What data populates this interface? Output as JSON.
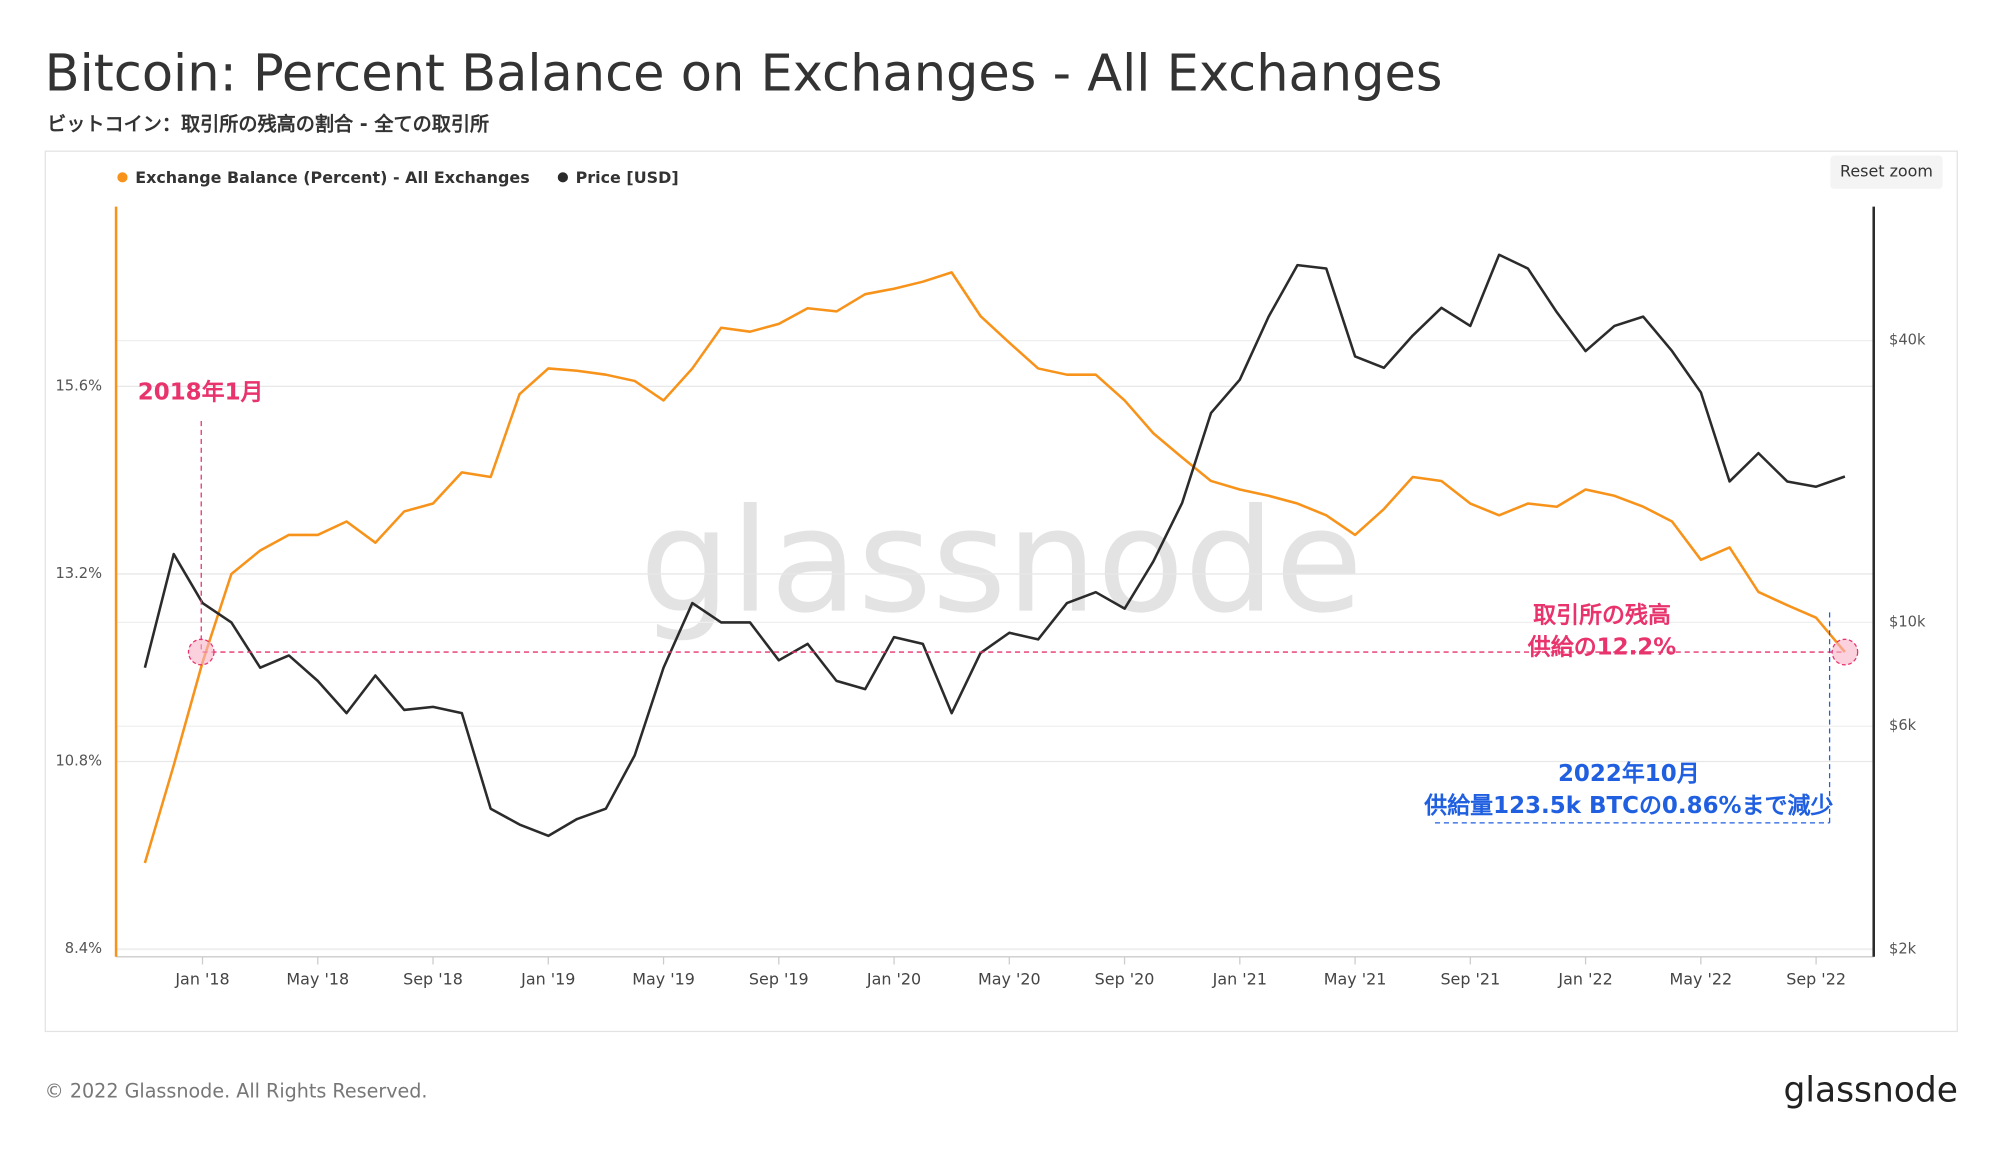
{
  "title": "Bitcoin: Percent Balance on Exchanges - All Exchanges",
  "subtitle": "ビットコイン：取引所の残高の割合 - 全ての取引所",
  "reset_zoom": "Reset zoom",
  "watermark": "glassnode",
  "footer": "© 2022 Glassnode. All Rights Reserved.",
  "logo": "glassnode",
  "chart_data": {
    "type": "line",
    "x": [
      "2017-11",
      "2017-12",
      "2018-01",
      "2018-02",
      "2018-03",
      "2018-04",
      "2018-05",
      "2018-06",
      "2018-07",
      "2018-08",
      "2018-09",
      "2018-10",
      "2018-11",
      "2018-12",
      "2019-01",
      "2019-02",
      "2019-03",
      "2019-04",
      "2019-05",
      "2019-06",
      "2019-07",
      "2019-08",
      "2019-09",
      "2019-10",
      "2019-11",
      "2019-12",
      "2020-01",
      "2020-02",
      "2020-03",
      "2020-04",
      "2020-05",
      "2020-06",
      "2020-07",
      "2020-08",
      "2020-09",
      "2020-10",
      "2020-11",
      "2020-12",
      "2021-01",
      "2021-02",
      "2021-03",
      "2021-04",
      "2021-05",
      "2021-06",
      "2021-07",
      "2021-08",
      "2021-09",
      "2021-10",
      "2021-11",
      "2021-12",
      "2022-01",
      "2022-02",
      "2022-03",
      "2022-04",
      "2022-05",
      "2022-06",
      "2022-07",
      "2022-08",
      "2022-09",
      "2022-10"
    ],
    "series": [
      {
        "name": "Exchange Balance (Percent) - All Exchanges",
        "color": "#f7931a",
        "axis": "y",
        "values": [
          9.5,
          10.75,
          12.07,
          13.2,
          13.5,
          13.7,
          13.7,
          13.87,
          13.6,
          14.0,
          14.1,
          14.5,
          14.44,
          15.5,
          15.83,
          15.8,
          15.75,
          15.67,
          15.42,
          15.83,
          16.35,
          16.3,
          16.4,
          16.6,
          16.56,
          16.78,
          16.85,
          16.94,
          17.06,
          16.5,
          16.16,
          15.83,
          15.75,
          15.75,
          15.42,
          15.0,
          14.69,
          14.39,
          14.28,
          14.2,
          14.1,
          13.95,
          13.7,
          14.03,
          14.44,
          14.39,
          14.1,
          13.95,
          14.1,
          14.06,
          14.28,
          14.2,
          14.06,
          13.87,
          13.38,
          13.54,
          12.97,
          12.8,
          12.64,
          12.2
        ]
      },
      {
        "name": "Price [USD]",
        "color": "#2b2b2b",
        "axis": "y2",
        "values": [
          8000,
          14000,
          11000,
          10000,
          8000,
          8500,
          7500,
          6400,
          7700,
          6500,
          6600,
          6400,
          4000,
          3700,
          3500,
          3800,
          4000,
          5200,
          8000,
          11000,
          10000,
          10000,
          8300,
          9000,
          7500,
          7200,
          9300,
          9000,
          6400,
          8600,
          9500,
          9200,
          11000,
          11600,
          10700,
          13500,
          18000,
          28000,
          33000,
          45000,
          58000,
          57000,
          37000,
          35000,
          41000,
          47000,
          43000,
          61000,
          57000,
          46000,
          38000,
          43000,
          45000,
          38000,
          31000,
          20000,
          23000,
          20000,
          19500,
          20500
        ]
      }
    ],
    "xlim": [
      "2017-10",
      "2022-11"
    ],
    "xticks": [
      {
        "value": "2018-01",
        "label": "Jan '18"
      },
      {
        "value": "2018-05",
        "label": "May '18"
      },
      {
        "value": "2018-09",
        "label": "Sep '18"
      },
      {
        "value": "2019-01",
        "label": "Jan '19"
      },
      {
        "value": "2019-05",
        "label": "May '19"
      },
      {
        "value": "2019-09",
        "label": "Sep '19"
      },
      {
        "value": "2020-01",
        "label": "Jan '20"
      },
      {
        "value": "2020-05",
        "label": "May '20"
      },
      {
        "value": "2020-09",
        "label": "Sep '20"
      },
      {
        "value": "2021-01",
        "label": "Jan '21"
      },
      {
        "value": "2021-05",
        "label": "May '21"
      },
      {
        "value": "2021-09",
        "label": "Sep '21"
      },
      {
        "value": "2022-01",
        "label": "Jan '22"
      },
      {
        "value": "2022-05",
        "label": "May '22"
      },
      {
        "value": "2022-09",
        "label": "Sep '22"
      }
    ],
    "ylim": [
      8.3,
      17.9
    ],
    "yticks": [
      {
        "value": 8.4,
        "label": "8.4%"
      },
      {
        "value": 10.8,
        "label": "10.8%"
      },
      {
        "value": 13.2,
        "label": "13.2%"
      },
      {
        "value": 15.6,
        "label": "15.6%"
      }
    ],
    "y2lim": [
      1930,
      77300
    ],
    "y2scale": "log",
    "y2ticks": [
      {
        "value": 2000,
        "label": "$2k"
      },
      {
        "value": 6000,
        "label": "$6k"
      },
      {
        "value": 10000,
        "label": "$10k"
      },
      {
        "value": 40000,
        "label": "$40k"
      }
    ],
    "grid": true,
    "annotations": [
      "2018年1月",
      "取引所の残高",
      "供給の12.2%",
      "2022年10月",
      "供給量123.5k BTCの0.86%まで減少"
    ]
  }
}
